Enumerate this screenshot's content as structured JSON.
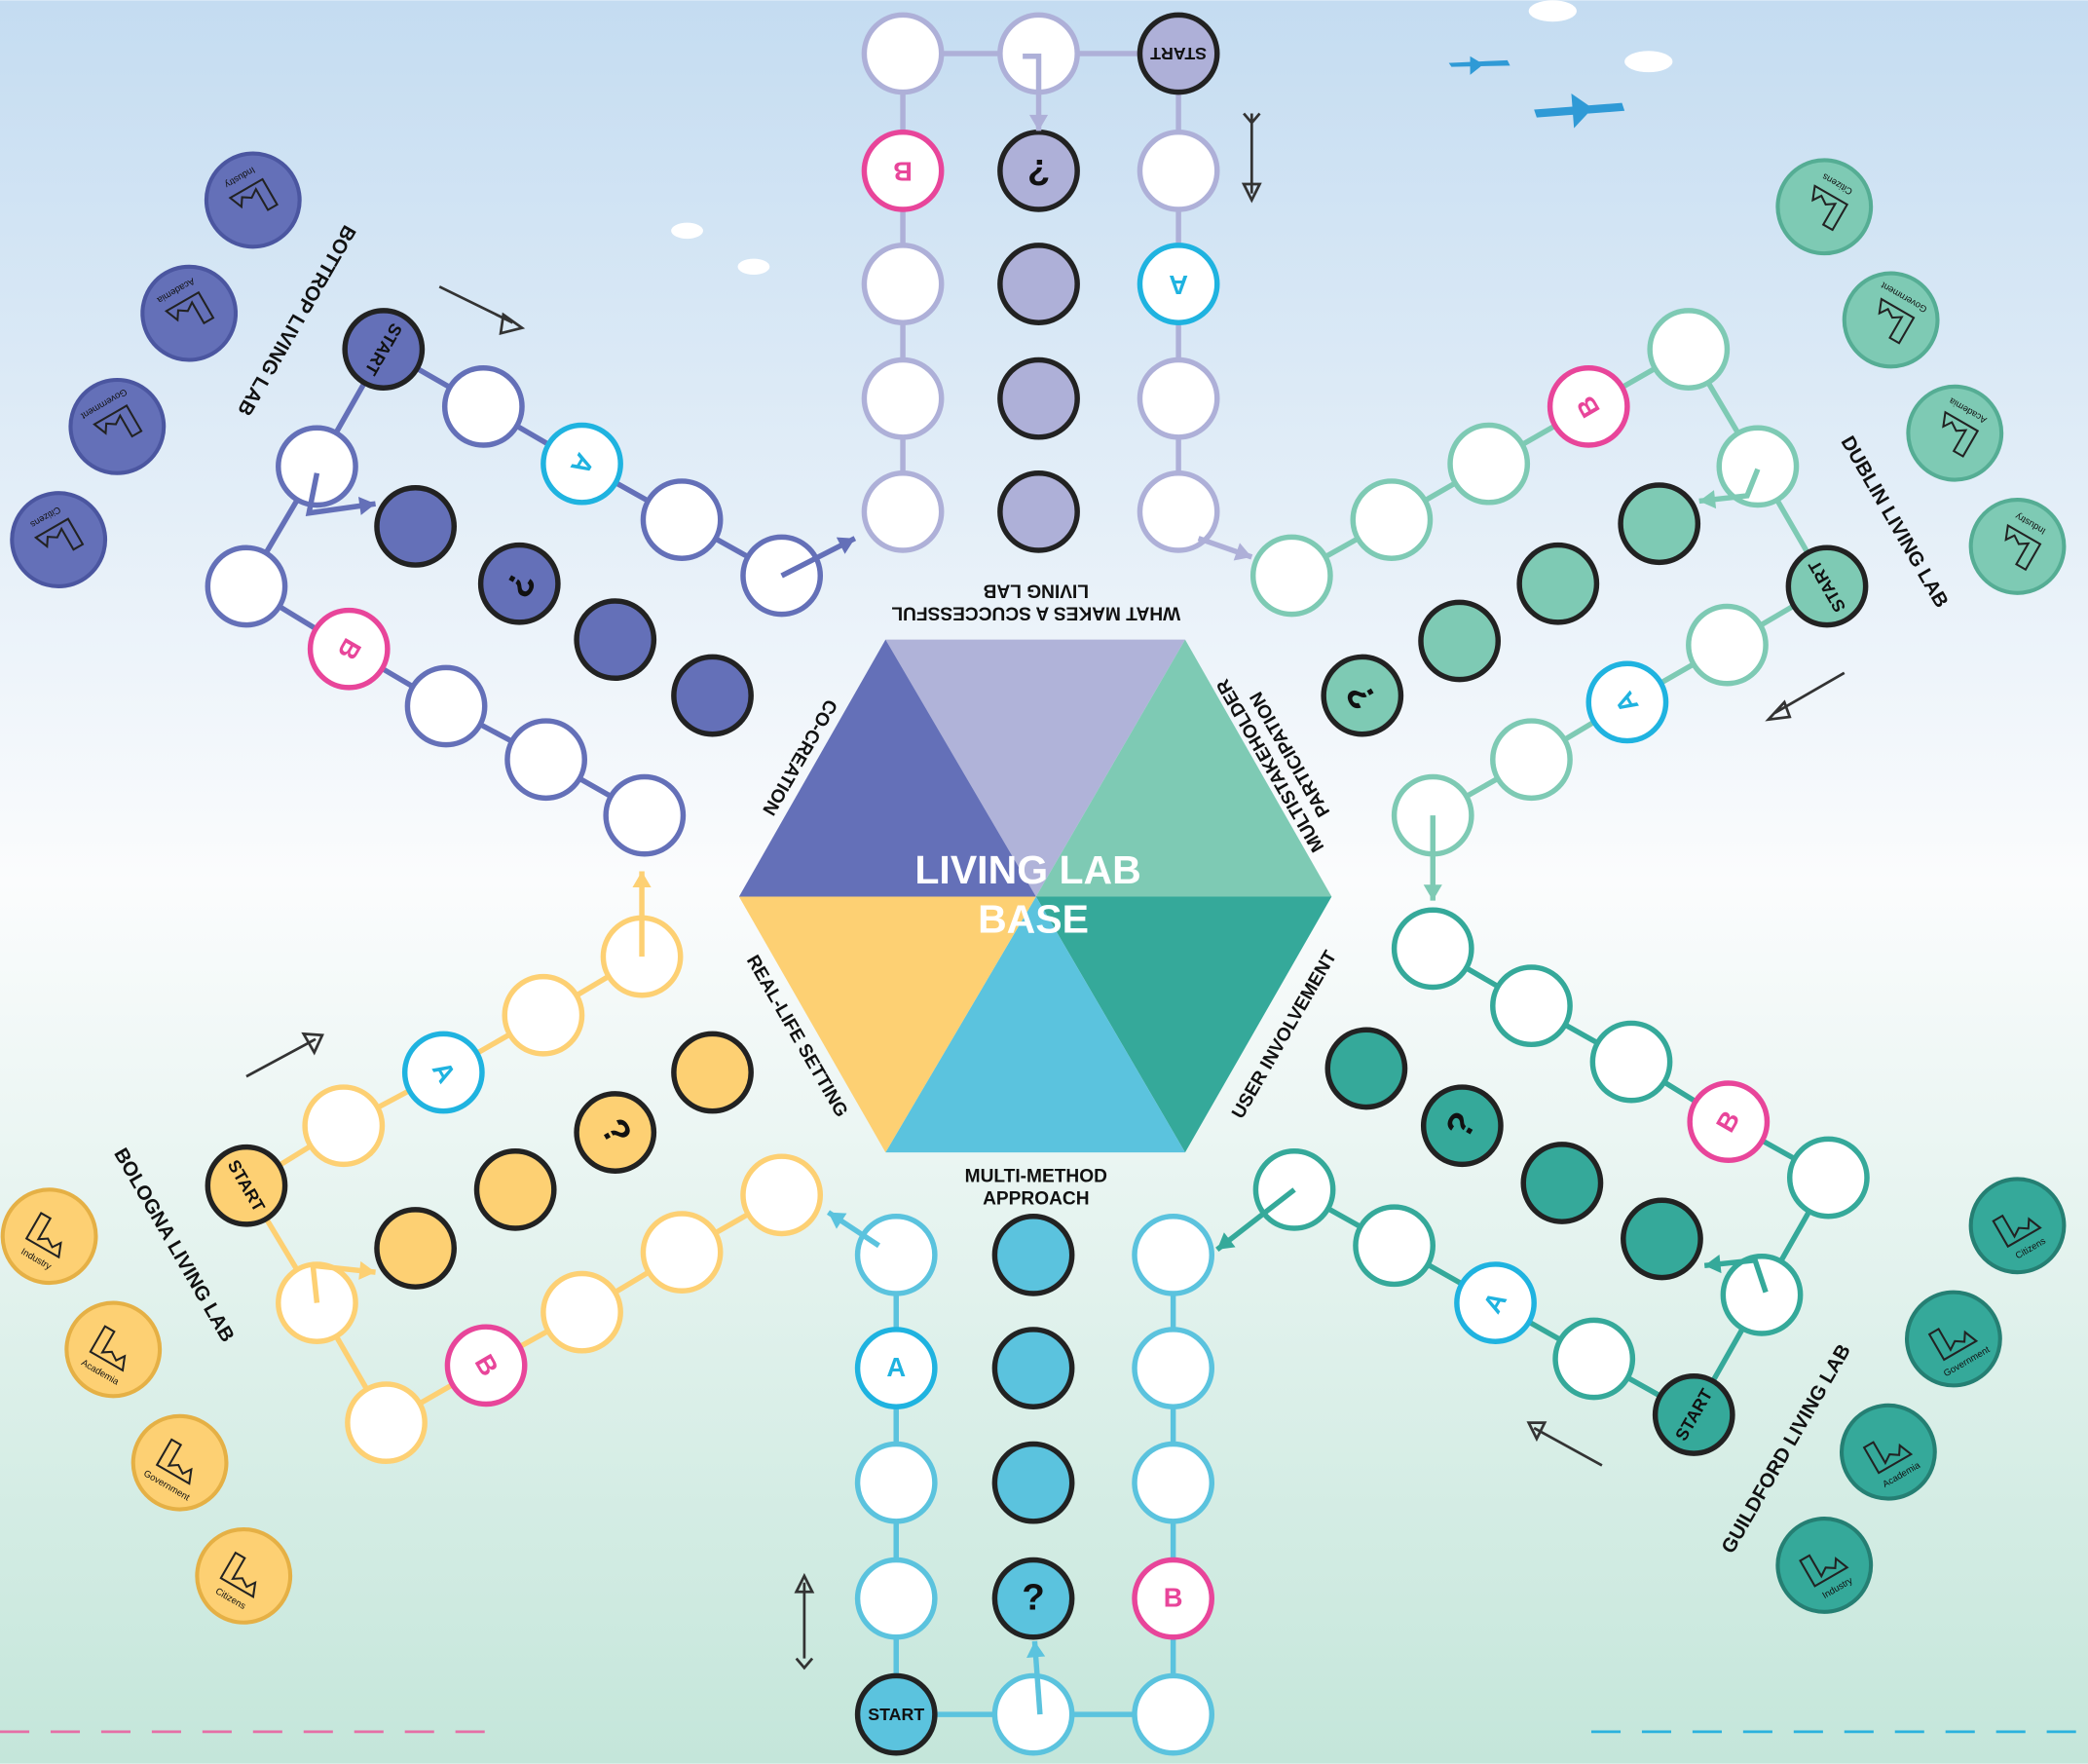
{
  "board": {
    "center_title": [
      "LIVING LAB",
      "BASE"
    ],
    "segments": [
      [
        "WHAT MAKES A SCUCCESSFUL",
        "LIVING LAB"
      ],
      [
        "MULTISTAKEHOLDER",
        "PARTICIPATION"
      ],
      [
        "USER INVOLVEMENT"
      ],
      [
        "MULTI-METHOD",
        "APPROACH"
      ],
      [
        "REAL-LIFE SETTING"
      ],
      [
        "CO-CREATION"
      ]
    ]
  },
  "tokens": {
    "start": "START",
    "a": "A",
    "b": "B",
    "question": "?"
  },
  "labs": [
    {
      "name": "BOTTROP LIVING LAB",
      "stakeholders": [
        "Industry",
        "Academia",
        "Government",
        "Citizens"
      ]
    },
    {
      "name": "DUBLIN LIVING LAB",
      "stakeholders": [
        "Citizens",
        "Government",
        "Academia",
        "Industry"
      ]
    },
    {
      "name": "GUILDFORD LIVING LAB",
      "stakeholders": [
        "Citizens",
        "Government",
        "Academia",
        "Industry"
      ]
    },
    {
      "name": "BOLOGNA LIVING LAB",
      "stakeholders": [
        "Industry",
        "Academia",
        "Government",
        "Citizens"
      ]
    }
  ]
}
